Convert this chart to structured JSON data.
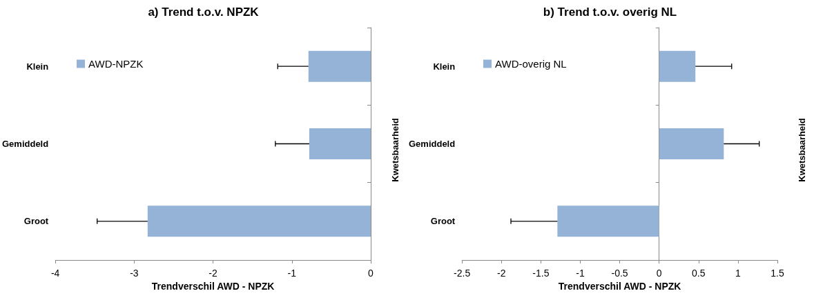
{
  "chart_data": [
    {
      "type": "bar",
      "orientation": "horizontal",
      "title": "a) Trend t.o.v. NPZK",
      "xlabel": "Trendverschil AWD - NPZK",
      "ylabel": "Kwetsbaarheid",
      "categories": [
        "Klein",
        "Gemiddeld",
        "Groot"
      ],
      "series": [
        {
          "name": "AWD-NPZK",
          "color": "#95b3d7",
          "values": [
            -0.79,
            -0.78,
            -2.83
          ],
          "errors": [
            [
              -1.18,
              -0.79
            ],
            [
              -1.21,
              -0.78
            ],
            [
              -3.47,
              -2.83
            ]
          ]
        }
      ],
      "xlim": [
        -4,
        0
      ],
      "xticks": [
        -4,
        -3,
        -2,
        -1,
        0
      ],
      "legend": "top left"
    },
    {
      "type": "bar",
      "orientation": "horizontal",
      "title": "b) Trend t.o.v. overig NL",
      "xlabel": "Trendverschil AWD - NPZK",
      "ylabel": "Kwetsbaarheid",
      "categories": [
        "Klein",
        "Gemiddeld",
        "Groot"
      ],
      "series": [
        {
          "name": "AWD-overig NL",
          "color": "#95b3d7",
          "values": [
            0.46,
            0.82,
            -1.29
          ],
          "errors": [
            [
              0.46,
              0.92
            ],
            [
              0.82,
              1.27
            ],
            [
              -1.88,
              -1.29
            ]
          ]
        }
      ],
      "xlim": [
        -2.5,
        1.5
      ],
      "xticks": [
        -2.5,
        -2,
        -1.5,
        -1,
        -0.5,
        0,
        0.5,
        1,
        1.5
      ],
      "legend": "top left"
    }
  ]
}
